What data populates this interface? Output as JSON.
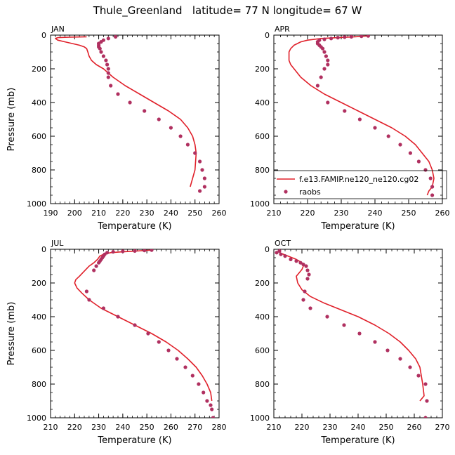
{
  "figure": {
    "title": "Thule_Greenland   latitude= 77 N longitude= 67 W"
  },
  "colors": {
    "model_line": "#e0202a",
    "raobs_points": "#b03060",
    "axis": "#000000"
  },
  "chart_data": [
    {
      "type": "line",
      "panel_label": "JAN",
      "xlabel": "Temperature (K)",
      "ylabel": "Pressure (mb)",
      "xlim": [
        190,
        260
      ],
      "xticks": [
        190,
        200,
        210,
        220,
        230,
        240,
        250,
        260
      ],
      "ylim": [
        1000,
        0
      ],
      "yticks": [
        0,
        200,
        400,
        600,
        800,
        1000
      ],
      "series": [
        {
          "name": "f.e13.FAMIP.ne120_ne120.cg02",
          "kind": "line",
          "x": [
            205,
            198,
            193,
            192,
            193,
            196,
            199,
            202,
            204,
            205,
            205.5,
            206,
            207,
            209,
            212,
            216,
            221,
            227,
            233,
            239,
            244,
            247,
            249,
            250,
            250.5,
            250,
            249,
            248
          ],
          "y": [
            10,
            12,
            15,
            20,
            30,
            40,
            50,
            60,
            70,
            80,
            100,
            125,
            150,
            175,
            200,
            250,
            300,
            350,
            400,
            450,
            500,
            550,
            600,
            650,
            700,
            800,
            850,
            900
          ]
        },
        {
          "name": "raobs",
          "kind": "points",
          "x": [
            217,
            214,
            212,
            211,
            210,
            210,
            210,
            210.5,
            211,
            212,
            213,
            213.5,
            214,
            214,
            214,
            215,
            218,
            223,
            229,
            235,
            240,
            244,
            247,
            250,
            252,
            253,
            254,
            254,
            252
          ],
          "y": [
            10,
            20,
            30,
            40,
            50,
            60,
            70,
            80,
            100,
            125,
            150,
            175,
            200,
            225,
            250,
            300,
            350,
            400,
            450,
            500,
            550,
            600,
            650,
            700,
            750,
            800,
            850,
            900,
            925
          ]
        }
      ]
    },
    {
      "type": "line",
      "panel_label": "APR",
      "xlabel": "Temperature (K)",
      "ylabel": "",
      "xlim": [
        210,
        260
      ],
      "xticks": [
        210,
        220,
        230,
        240,
        250,
        260
      ],
      "ylim": [
        1000,
        0
      ],
      "yticks": [
        0,
        200,
        400,
        600,
        800,
        1000
      ],
      "legend": {
        "placement": "right-middle",
        "entries": [
          {
            "label": "f.e13.FAMIP.ne120_ne120.cg02",
            "kind": "line"
          },
          {
            "label": "raobs",
            "kind": "points"
          }
        ]
      },
      "series": [
        {
          "name": "f.e13.FAMIP.ne120_ne120.cg02",
          "kind": "line",
          "x": [
            238,
            234,
            229,
            224,
            220,
            218,
            216,
            215,
            214.5,
            214.5,
            215,
            216,
            218,
            221,
            225,
            230,
            235,
            240,
            245,
            249,
            252,
            254,
            256,
            257,
            257.5,
            257,
            256,
            255.5
          ],
          "y": [
            5,
            10,
            15,
            20,
            30,
            40,
            60,
            80,
            100,
            150,
            175,
            200,
            250,
            300,
            350,
            400,
            450,
            500,
            550,
            600,
            650,
            700,
            750,
            800,
            850,
            900,
            925,
            950
          ]
        },
        {
          "name": "raobs",
          "kind": "points",
          "x": [
            238,
            236,
            233,
            231,
            229,
            227,
            225,
            223.5,
            223,
            223,
            223.5,
            224,
            224.5,
            225,
            225.5,
            226,
            226,
            225,
            224,
            223,
            226,
            231,
            235.5,
            240,
            244,
            247.5,
            250.5,
            253,
            255,
            256.5,
            257,
            257
          ],
          "y": [
            5,
            7,
            10,
            12,
            15,
            20,
            25,
            30,
            40,
            50,
            60,
            70,
            80,
            100,
            125,
            150,
            175,
            200,
            250,
            300,
            400,
            450,
            500,
            550,
            600,
            650,
            700,
            750,
            800,
            850,
            900,
            950
          ]
        }
      ]
    },
    {
      "type": "line",
      "panel_label": "JUL",
      "xlabel": "Temperature (K)",
      "ylabel": "Pressure (mb)",
      "xlim": [
        210,
        280
      ],
      "xticks": [
        210,
        220,
        230,
        240,
        250,
        260,
        270,
        280
      ],
      "ylim": [
        1000,
        0
      ],
      "yticks": [
        0,
        200,
        400,
        600,
        800,
        1000
      ],
      "series": [
        {
          "name": "f.e13.FAMIP.ne120_ne120.cg02",
          "kind": "line",
          "x": [
            252,
            246,
            240,
            235,
            232,
            230.5,
            229.5,
            228,
            226,
            224,
            222,
            220.5,
            220,
            221,
            223,
            226,
            231,
            238,
            245,
            252,
            258,
            263,
            267,
            270.5,
            273,
            275,
            276.5,
            277
          ],
          "y": [
            5,
            10,
            15,
            20,
            30,
            40,
            60,
            80,
            100,
            130,
            160,
            180,
            200,
            230,
            260,
            300,
            350,
            400,
            450,
            500,
            550,
            600,
            650,
            700,
            750,
            800,
            850,
            900
          ]
        },
        {
          "name": "raobs",
          "kind": "points",
          "x": [
            252,
            249,
            245,
            240,
            236,
            233.5,
            232.5,
            232,
            231.5,
            231,
            230.5,
            230,
            229,
            228,
            225,
            226,
            232,
            238,
            245,
            250.5,
            255,
            259,
            262.5,
            266,
            269,
            271.5,
            273.5,
            275,
            276.5,
            277,
            277.5
          ],
          "y": [
            5,
            7,
            10,
            12,
            15,
            20,
            30,
            40,
            50,
            60,
            70,
            80,
            100,
            125,
            250,
            300,
            350,
            400,
            450,
            500,
            550,
            600,
            650,
            700,
            750,
            800,
            850,
            900,
            925,
            950,
            1000
          ]
        }
      ]
    },
    {
      "type": "line",
      "panel_label": "OCT",
      "xlabel": "Temperature (K)",
      "ylabel": "",
      "xlim": [
        210,
        270
      ],
      "xticks": [
        210,
        220,
        230,
        240,
        250,
        260,
        270
      ],
      "ylim": [
        1000,
        0
      ],
      "yticks": [
        0,
        200,
        400,
        600,
        800,
        1000
      ],
      "series": [
        {
          "name": "f.e13.FAMIP.ne120_ne120.cg02",
          "kind": "line",
          "x": [
            212,
            213.5,
            215,
            216.5,
            218,
            219,
            220,
            220.5,
            220.5,
            220,
            219,
            218,
            218.5,
            220,
            223,
            228,
            234,
            240,
            246,
            251,
            255,
            258,
            260.5,
            262,
            263,
            263.5,
            262
          ],
          "y": [
            20,
            30,
            40,
            50,
            60,
            70,
            80,
            90,
            100,
            120,
            140,
            160,
            200,
            240,
            280,
            320,
            360,
            400,
            450,
            500,
            550,
            600,
            650,
            700,
            800,
            870,
            900
          ]
        },
        {
          "name": "raobs",
          "kind": "points",
          "x": [
            212,
            211,
            212.5,
            214,
            216,
            218,
            219.5,
            220.5,
            221.5,
            222,
            222.5,
            222,
            221,
            220.5,
            223,
            229,
            235,
            240.5,
            246,
            250.5,
            255,
            258.5,
            261.5,
            264,
            264.5,
            264
          ],
          "y": [
            10,
            20,
            30,
            40,
            60,
            70,
            80,
            90,
            100,
            125,
            150,
            175,
            250,
            300,
            350,
            400,
            450,
            500,
            550,
            600,
            650,
            700,
            750,
            800,
            900,
            1000
          ]
        }
      ]
    }
  ]
}
